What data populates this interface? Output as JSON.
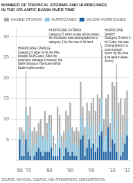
{
  "chart_data": {
    "type": "bar",
    "title": "NUMBER OF TROPICAL STORMS AND HURRICANES\nIN THE ATLANTIC BASIN OVER TIME",
    "source": "SOURCE: NATIONAL OCEANIC AND ATMOSPHERIC ADMINISTRATION",
    "x": [
      1966,
      1967,
      1968,
      1969,
      1970,
      1971,
      1972,
      1973,
      1974,
      1975,
      1976,
      1977,
      1978,
      1979,
      1980,
      1981,
      1982,
      1983,
      1984,
      1985,
      1986,
      1987,
      1988,
      1989,
      1990,
      1991,
      1992,
      1993,
      1994,
      1995,
      1996,
      1997,
      1998,
      1999,
      2000,
      2001,
      2002,
      2003,
      2004,
      2005,
      2006,
      2007,
      2008,
      2009,
      2010,
      2011,
      2012,
      2013,
      2014,
      2015,
      2016,
      2017
    ],
    "series": [
      {
        "name": "NAMED STORMS",
        "color": "#aaaaaa",
        "values": [
          8,
          8,
          7,
          13,
          11,
          13,
          7,
          8,
          7,
          9,
          10,
          6,
          12,
          9,
          11,
          11,
          6,
          4,
          13,
          11,
          6,
          7,
          12,
          11,
          14,
          8,
          7,
          8,
          7,
          19,
          13,
          8,
          14,
          12,
          14,
          15,
          12,
          16,
          15,
          27,
          10,
          15,
          16,
          9,
          19,
          18,
          19,
          14,
          15,
          11,
          15,
          17
        ]
      },
      {
        "name": "HURRICANES",
        "color": "#90c8e0",
        "values": [
          7,
          6,
          4,
          12,
          5,
          8,
          3,
          4,
          4,
          6,
          6,
          5,
          6,
          5,
          9,
          7,
          2,
          3,
          5,
          7,
          4,
          3,
          5,
          7,
          8,
          4,
          4,
          4,
          3,
          11,
          9,
          3,
          10,
          8,
          8,
          9,
          4,
          7,
          9,
          15,
          5,
          6,
          8,
          3,
          12,
          7,
          10,
          2,
          6,
          4,
          7,
          10
        ]
      },
      {
        "name": "MAJOR HURRICANES",
        "color": "#1e5fa0",
        "values": [
          5,
          1,
          1,
          5,
          2,
          1,
          0,
          1,
          2,
          3,
          2,
          1,
          2,
          2,
          2,
          3,
          1,
          1,
          1,
          3,
          0,
          1,
          3,
          2,
          1,
          2,
          1,
          1,
          0,
          5,
          6,
          1,
          3,
          5,
          3,
          4,
          2,
          3,
          6,
          7,
          2,
          2,
          8,
          2,
          5,
          4,
          2,
          0,
          1,
          2,
          4,
          6
        ]
      }
    ],
    "stacked": false,
    "xlim": [
      1964.5,
      2018.5
    ],
    "xticks": [
      {
        "value": 1966,
        "label": "'66"
      },
      {
        "value": 1970,
        "label": "'70"
      },
      {
        "value": 1980,
        "label": "'80"
      },
      {
        "value": 1990,
        "label": "'90"
      },
      {
        "value": 2000,
        "label": "'00"
      },
      {
        "value": 2010,
        "label": "'10"
      },
      {
        "value": 2017,
        "label": "'17"
      }
    ],
    "ylim": [
      0,
      32
    ],
    "yticks": [
      5,
      10,
      15,
      20,
      25,
      30
    ],
    "grid": true,
    "legend": "top",
    "annotations": [
      {
        "text": "HURRICANE CAMILLE\nCategory 5 when it hit the Mis-\nsissippi Gulf Coast. After the\nextensive damage it caused, the\nSaffir-Simpson Hurricane Wind\nScale implemented",
        "x": 1969
      },
      {
        "text": "HURRICANE KATRINA\nCategory 5 when it was above water,\nthe hurricane was downgraded to a\ncategory 3 by the time it hit land",
        "x": 2005
      },
      {
        "text": "HURRICANE\nSANDY\nCategory 2 when it\nhit Cuba, but was\ndowngraded to a\npost-tropical\nstorm by the time\nit hit land in New\nJersey",
        "x": 2012
      }
    ]
  }
}
